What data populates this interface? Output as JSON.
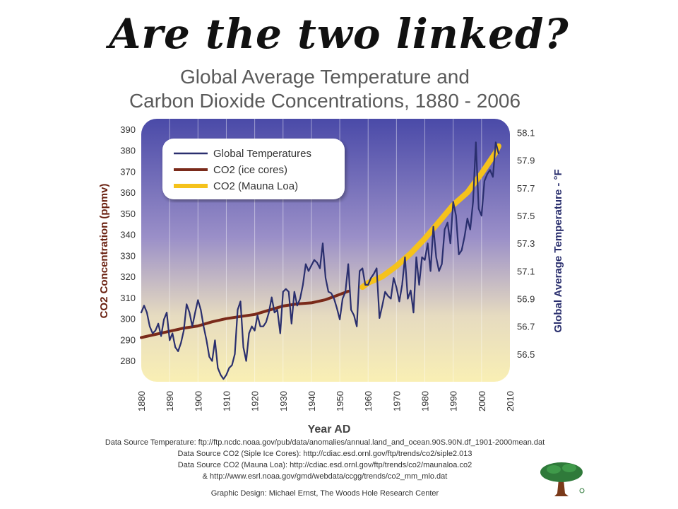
{
  "slide": {
    "title": "Are the two linked?"
  },
  "chart_data": {
    "type": "line",
    "title": [
      "Global Average Temperature and",
      "Carbon Dioxide Concentrations, 1880 - 2006"
    ],
    "xlabel": "Year AD",
    "ylabel_left": "CO2 Concentration (ppmv)",
    "ylabel_right": "Global Average Temperature - °F",
    "xlim": [
      1880,
      2010
    ],
    "ylim_left": [
      270,
      395
    ],
    "ylim_right": [
      56.3,
      58.2
    ],
    "x_ticks": [
      "1880",
      "1890",
      "1900",
      "1910",
      "1920",
      "1930",
      "1940",
      "1950",
      "1960",
      "1970",
      "1980",
      "1990",
      "2000",
      "2010"
    ],
    "y_ticks_left": [
      "280",
      "290",
      "300",
      "310",
      "320",
      "330",
      "340",
      "350",
      "360",
      "370",
      "380",
      "390"
    ],
    "y_ticks_right": [
      "56.5",
      "56.7",
      "56.9",
      "57.1",
      "57.3",
      "57.5",
      "57.7",
      "57.9",
      "58.1"
    ],
    "grid": true,
    "legend_position": "top-left",
    "legend": [
      "Global Temperatures",
      "CO2 (ice cores)",
      "CO2 (Mauna Loa)"
    ],
    "colors": {
      "temperature": "#2a2f6e",
      "ice_cores": "#7a2a1a",
      "mauna_loa": "#f5c21b"
    },
    "series": [
      {
        "name": "CO2 (ice cores)",
        "axis": "left",
        "x": [
          1880,
          1885,
          1890,
          1895,
          1900,
          1905,
          1910,
          1915,
          1920,
          1925,
          1930,
          1935,
          1940,
          1945,
          1950,
          1953
        ],
        "values": [
          291,
          292.5,
          294,
          295.5,
          296.5,
          298.5,
          300,
          301,
          302,
          304,
          306,
          307,
          307.5,
          309,
          311.5,
          313
        ]
      },
      {
        "name": "CO2 (Mauna Loa)",
        "axis": "left",
        "x": [
          1958,
          1960,
          1965,
          1970,
          1975,
          1980,
          1985,
          1990,
          1995,
          2000,
          2005,
          2006
        ],
        "values": [
          315,
          317,
          320,
          325,
          331,
          338,
          346,
          354,
          360,
          369,
          379,
          382
        ]
      },
      {
        "name": "Global Temperatures",
        "axis": "right",
        "x": [
          1880,
          1881,
          1882,
          1883,
          1884,
          1885,
          1886,
          1887,
          1888,
          1889,
          1890,
          1891,
          1892,
          1893,
          1894,
          1895,
          1896,
          1897,
          1898,
          1899,
          1900,
          1901,
          1902,
          1903,
          1904,
          1905,
          1906,
          1907,
          1908,
          1909,
          1910,
          1911,
          1912,
          1913,
          1914,
          1915,
          1916,
          1917,
          1918,
          1919,
          1920,
          1921,
          1922,
          1923,
          1924,
          1925,
          1926,
          1927,
          1928,
          1929,
          1930,
          1931,
          1932,
          1933,
          1934,
          1935,
          1936,
          1937,
          1938,
          1939,
          1940,
          1941,
          1942,
          1943,
          1944,
          1945,
          1946,
          1947,
          1948,
          1949,
          1950,
          1951,
          1952,
          1953,
          1954,
          1955,
          1956,
          1957,
          1958,
          1959,
          1960,
          1961,
          1962,
          1963,
          1964,
          1965,
          1966,
          1967,
          1968,
          1969,
          1970,
          1971,
          1972,
          1973,
          1974,
          1975,
          1976,
          1977,
          1978,
          1979,
          1980,
          1981,
          1982,
          1983,
          1984,
          1985,
          1986,
          1987,
          1988,
          1989,
          1990,
          1991,
          1992,
          1993,
          1994,
          1995,
          1996,
          1997,
          1998,
          1999,
          2000,
          2001,
          2002,
          2003,
          2004,
          2005,
          2006
        ],
        "values": [
          56.8,
          56.85,
          56.8,
          56.7,
          56.65,
          56.67,
          56.72,
          56.63,
          56.75,
          56.8,
          56.6,
          56.65,
          56.55,
          56.52,
          56.58,
          56.67,
          56.86,
          56.8,
          56.7,
          56.8,
          56.89,
          56.82,
          56.7,
          56.6,
          56.48,
          56.45,
          56.6,
          56.4,
          56.35,
          56.32,
          56.35,
          56.4,
          56.42,
          56.5,
          56.82,
          56.88,
          56.55,
          56.45,
          56.65,
          56.7,
          56.67,
          56.78,
          56.7,
          56.7,
          56.73,
          56.8,
          56.91,
          56.8,
          56.82,
          56.65,
          56.95,
          56.97,
          56.95,
          56.72,
          56.95,
          56.85,
          56.9,
          57.0,
          57.15,
          57.1,
          57.14,
          57.18,
          57.16,
          57.12,
          57.3,
          57.05,
          56.95,
          56.94,
          56.9,
          56.83,
          56.75,
          56.9,
          56.95,
          57.15,
          56.82,
          56.78,
          56.7,
          57.1,
          57.12,
          57.0,
          57.0,
          57.05,
          57.08,
          57.12,
          56.76,
          56.85,
          56.95,
          56.92,
          56.9,
          57.05,
          56.98,
          56.88,
          57.0,
          57.2,
          56.9,
          56.96,
          56.8,
          57.2,
          57.0,
          57.2,
          57.18,
          57.3,
          57.1,
          57.42,
          57.2,
          57.1,
          57.15,
          57.4,
          57.45,
          57.3,
          57.6,
          57.5,
          57.22,
          57.25,
          57.35,
          57.48,
          57.4,
          57.6,
          58.03,
          57.55,
          57.5,
          57.75,
          57.8,
          57.83,
          57.78,
          58.03,
          57.95
        ]
      }
    ]
  },
  "sources": [
    "Data Source Temperature: ftp://ftp.ncdc.noaa.gov/pub/data/anomalies/annual.land_and_ocean.90S.90N.df_1901-2000mean.dat",
    "Data Source CO2 (Siple Ice Cores): http://cdiac.esd.ornl.gov/ftp/trends/co2/siple2.013",
    "Data Source CO2 (Mauna Loa): http://cdiac.esd.ornl.gov/ftp/trends/co2/maunaloa.co2",
    "& http://www.esrl.noaa.gov/gmd/webdata/ccgg/trends/co2_mm_mlo.dat",
    "",
    "Graphic Design: Michael Ernst, The Woods Hole Research Center"
  ]
}
